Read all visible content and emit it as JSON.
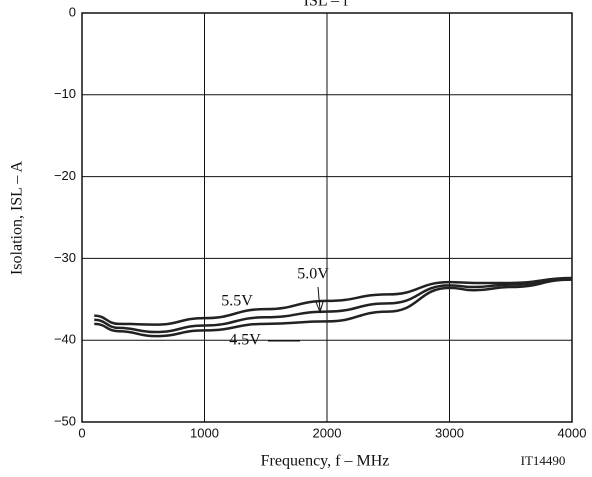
{
  "chart_data": {
    "type": "line",
    "title": "ISL – f",
    "x_label": "Frequency, f – MHz",
    "y_label": "Isolation, ISL – A",
    "annotation": "IT14490",
    "x": [
      100,
      300,
      600,
      1000,
      1500,
      2000,
      2500,
      3000,
      3200,
      3500,
      4000
    ],
    "series": [
      {
        "name": "5.5V",
        "color": "#222222",
        "values": [
          -37.0,
          -38.0,
          -38.1,
          -37.3,
          -36.2,
          -35.2,
          -34.4,
          -32.9,
          -33.0,
          -33.0,
          -32.4
        ]
      },
      {
        "name": "5.0V",
        "color": "#222222",
        "values": [
          -37.5,
          -38.5,
          -39.0,
          -38.2,
          -37.2,
          -36.5,
          -35.5,
          -33.3,
          -33.5,
          -33.2,
          -32.5
        ]
      },
      {
        "name": "4.5V",
        "color": "#222222",
        "values": [
          -38.0,
          -38.9,
          -39.5,
          -38.8,
          -38.0,
          -37.7,
          -36.5,
          -33.6,
          -33.9,
          -33.5,
          -32.6
        ]
      }
    ],
    "xlim": [
      0,
      4000
    ],
    "xticks": [
      0,
      1000,
      2000,
      3000,
      4000
    ],
    "ylim": [
      -50,
      0
    ],
    "yticks": [
      0,
      {
        "value": -10,
        "label": "−10"
      },
      {
        "value": -20,
        "label": "−20"
      },
      {
        "value": -30,
        "label": "−30"
      },
      {
        "value": -40,
        "label": "−40"
      },
      {
        "value": -50,
        "label": "−50"
      }
    ],
    "grid": true
  }
}
